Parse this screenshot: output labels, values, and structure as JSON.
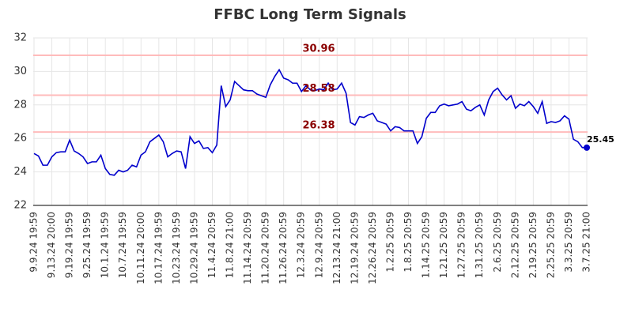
{
  "chart_data": {
    "type": "line",
    "title": "FFBC Long Term Signals",
    "categories": [
      "9.9.24 19:59",
      null,
      null,
      null,
      "9.13.24 20:00",
      null,
      null,
      null,
      "9.19.24 19:59",
      null,
      null,
      null,
      "9.25.24 19:59",
      null,
      null,
      null,
      "10.1.24 19:59",
      null,
      null,
      null,
      "10.7.24 19:59",
      null,
      null,
      null,
      "10.11.24 20:00",
      null,
      null,
      null,
      "10.17.24 19:59",
      null,
      null,
      null,
      "10.23.24 19:59",
      null,
      null,
      null,
      "10.29.24 19:59",
      null,
      null,
      null,
      "11.4.24 20:59",
      null,
      null,
      null,
      "11.8.24 21:00",
      null,
      null,
      null,
      "11.14.24 20:59",
      null,
      null,
      null,
      "11.20.24 20:59",
      null,
      null,
      null,
      "11.26.24 20:59",
      null,
      null,
      null,
      "12.3.24 20:59",
      null,
      null,
      null,
      "12.9.24 20:59",
      null,
      null,
      null,
      "12.13.24 21:00",
      null,
      null,
      null,
      "12.19.24 20:59",
      null,
      null,
      null,
      "12.26.24 20:59",
      null,
      null,
      null,
      "1.2.25 20:59",
      null,
      null,
      null,
      "1.8.25 20:59",
      null,
      null,
      null,
      "1.14.25 20:59",
      null,
      null,
      null,
      "1.21.25 20:59",
      null,
      null,
      null,
      "1.27.25 20:59",
      null,
      null,
      null,
      "1.31.25 20:59",
      null,
      null,
      null,
      "2.6.25 20:59",
      null,
      null,
      null,
      "2.12.25 20:59",
      null,
      null,
      null,
      "2.19.25 20:59",
      null,
      null,
      null,
      "2.25.25 20:59",
      null,
      null,
      null,
      "3.3.25 20:59",
      null,
      null,
      null,
      "3.7.25 21:00"
    ],
    "values": [
      25.1,
      24.95,
      24.4,
      24.4,
      24.9,
      25.15,
      25.2,
      25.2,
      25.9,
      25.25,
      25.1,
      24.9,
      24.5,
      24.6,
      24.6,
      25.0,
      24.2,
      23.85,
      23.8,
      24.1,
      24.0,
      24.1,
      24.4,
      24.3,
      25.0,
      25.2,
      25.8,
      26.0,
      26.2,
      25.8,
      24.9,
      25.1,
      25.25,
      25.2,
      24.2,
      26.1,
      25.7,
      25.85,
      25.4,
      25.45,
      25.15,
      25.6,
      29.15,
      27.9,
      28.3,
      29.4,
      29.15,
      28.9,
      28.85,
      28.85,
      28.65,
      28.55,
      28.45,
      29.2,
      29.7,
      30.1,
      29.6,
      29.5,
      29.3,
      29.3,
      28.8,
      29.15,
      28.9,
      28.85,
      28.95,
      28.9,
      29.3,
      28.9,
      28.95,
      29.3,
      28.7,
      26.95,
      26.8,
      27.3,
      27.25,
      27.4,
      27.5,
      27.05,
      26.95,
      26.85,
      26.45,
      26.7,
      26.65,
      26.45,
      26.45,
      26.45,
      25.7,
      26.1,
      27.2,
      27.55,
      27.55,
      27.95,
      28.05,
      27.95,
      28.0,
      28.05,
      28.2,
      27.75,
      27.65,
      27.85,
      28.0,
      27.4,
      28.3,
      28.8,
      29.0,
      28.6,
      28.3,
      28.55,
      27.8,
      28.05,
      27.95,
      28.2,
      27.9,
      27.5,
      28.2,
      26.9,
      27.0,
      26.95,
      27.05,
      27.35,
      27.15,
      25.95,
      25.8,
      25.45,
      25.45
    ],
    "color": "#0000cc",
    "hlines": [
      30.96,
      28.58,
      26.38
    ],
    "hline_color": "#ffbbbb",
    "hline_label_color": "#8b0000",
    "ylim": [
      22,
      32
    ],
    "yticks": [
      22,
      24,
      26,
      28,
      30,
      32
    ],
    "grid": true
  }
}
